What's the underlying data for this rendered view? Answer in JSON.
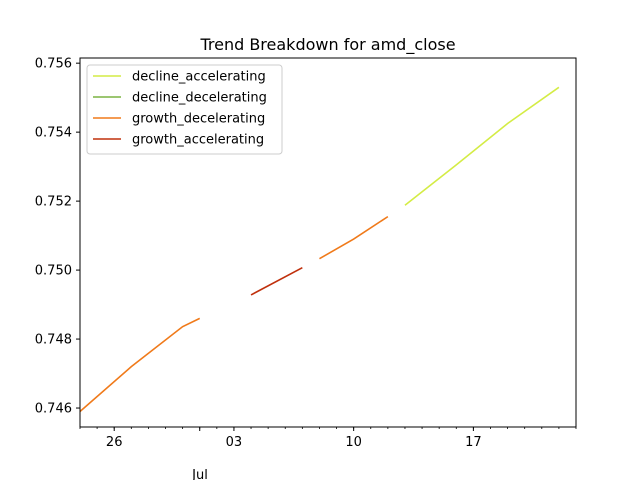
{
  "chart_data": {
    "type": "line",
    "title": "Trend Breakdown for amd_close",
    "xlabel": "",
    "ylabel": "",
    "x_axis_type": "date",
    "xlim": [
      "2023-06-24",
      "2023-07-23"
    ],
    "ylim": [
      0.74545,
      0.75615
    ],
    "yticks": [
      0.746,
      0.748,
      0.75,
      0.752,
      0.754,
      0.756
    ],
    "ytick_labels": [
      "0.746",
      "0.748",
      "0.750",
      "0.752",
      "0.754",
      "0.756"
    ],
    "xtick_positions": [
      "2023-06-26",
      "2023-07-03",
      "2023-07-10",
      "2023-07-17"
    ],
    "xtick_labels": [
      "26",
      "03",
      "10",
      "17"
    ],
    "x_secondary_label": "Jul",
    "x_secondary_label_position": "2023-07-01",
    "grid": false,
    "legend_position": "top-left",
    "legend": [
      {
        "name": "decline_accelerating",
        "color": "#d4ec45"
      },
      {
        "name": "decline_decelerating",
        "color": "#7cb342"
      },
      {
        "name": "growth_decelerating",
        "color": "#f07a1a"
      },
      {
        "name": "growth_accelerating",
        "color": "#c0300c"
      }
    ],
    "series": [
      {
        "category": "growth_decelerating",
        "color": "#f07a1a",
        "points": [
          [
            "2023-06-24",
            0.7459
          ],
          [
            "2023-06-27",
            0.7472
          ],
          [
            "2023-06-30",
            0.74836
          ],
          [
            "2023-07-01",
            0.7486
          ]
        ]
      },
      {
        "category": "growth_accelerating",
        "color": "#c0300c",
        "points": [
          [
            "2023-07-04",
            0.74928
          ],
          [
            "2023-07-07",
            0.75007
          ]
        ]
      },
      {
        "category": "growth_decelerating",
        "color": "#f07a1a",
        "points": [
          [
            "2023-07-08",
            0.75033
          ],
          [
            "2023-07-10",
            0.7509
          ],
          [
            "2023-07-12",
            0.75155
          ]
        ]
      },
      {
        "category": "decline_accelerating",
        "color": "#d4ec45",
        "points": [
          [
            "2023-07-13",
            0.75188
          ],
          [
            "2023-07-16",
            0.75305
          ],
          [
            "2023-07-19",
            0.75425
          ],
          [
            "2023-07-22",
            0.7553
          ]
        ]
      }
    ]
  }
}
